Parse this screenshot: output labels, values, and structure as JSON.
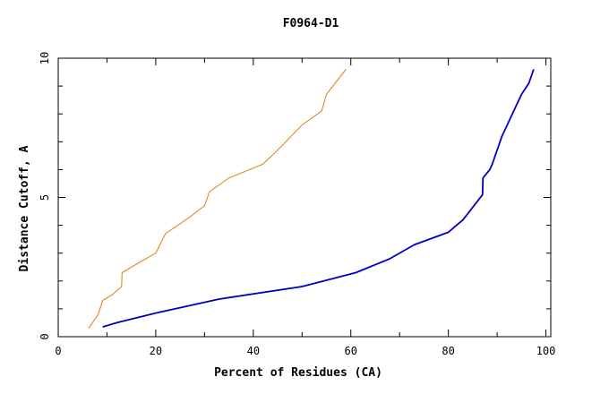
{
  "chart_data": {
    "type": "line",
    "title": "F0964-D1",
    "xlabel": "Percent of Residues (CA)",
    "ylabel": "Distance Cutoff, A",
    "xlim": [
      0,
      101
    ],
    "ylim": [
      0,
      10
    ],
    "x_ticks": [
      0,
      20,
      40,
      60,
      80,
      100
    ],
    "y_ticks": [
      0,
      5,
      10
    ],
    "grid": false,
    "series": [
      {
        "color": "#e08a1e",
        "points": [
          [
            6.2,
            0.3
          ],
          [
            8.2,
            0.8
          ],
          [
            9.1,
            1.3
          ],
          [
            11.0,
            1.5
          ],
          [
            13.0,
            1.8
          ],
          [
            13.1,
            2.3
          ],
          [
            16.0,
            2.6
          ],
          [
            20.0,
            3.0
          ],
          [
            22.0,
            3.7
          ],
          [
            27.0,
            4.3
          ],
          [
            30.0,
            4.7
          ],
          [
            31.0,
            5.2
          ],
          [
            35.0,
            5.7
          ],
          [
            42.0,
            6.2
          ],
          [
            45.0,
            6.7
          ],
          [
            50.0,
            7.6
          ],
          [
            54.0,
            8.1
          ],
          [
            55.0,
            8.7
          ],
          [
            59.0,
            9.6
          ]
        ]
      },
      {
        "color": "#0000c0",
        "points": [
          [
            9.1,
            0.35
          ],
          [
            12.0,
            0.5
          ],
          [
            20.0,
            0.85
          ],
          [
            33.0,
            1.35
          ],
          [
            50.0,
            1.8
          ],
          [
            61.0,
            2.3
          ],
          [
            68.0,
            2.8
          ],
          [
            73.0,
            3.3
          ],
          [
            80.0,
            3.75
          ],
          [
            83.0,
            4.2
          ],
          [
            87.0,
            5.1
          ],
          [
            87.1,
            5.7
          ],
          [
            88.5,
            6.0
          ],
          [
            89.0,
            6.2
          ],
          [
            91.0,
            7.2
          ],
          [
            95.0,
            8.7
          ],
          [
            96.5,
            9.1
          ],
          [
            97.5,
            9.6
          ]
        ]
      }
    ]
  }
}
